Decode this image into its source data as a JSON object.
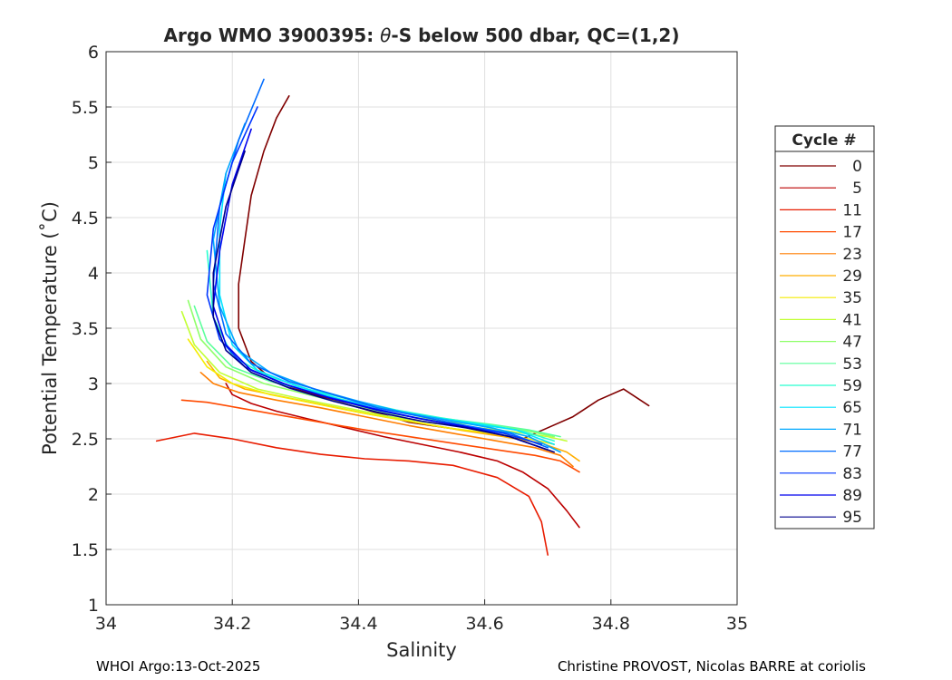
{
  "chart_data": {
    "type": "line",
    "title": {
      "prefix": "Argo WMO 3900395: ",
      "symbol": "θ",
      "suffix": "-S below 500 dbar,  QC=(1,2)"
    },
    "xlabel": "Salinity",
    "ylabel": "Potential Temperature (˚C)",
    "xlim": [
      34,
      35
    ],
    "ylim": [
      1,
      6
    ],
    "xticks": [
      {
        "value": 34,
        "label": "34"
      },
      {
        "value": 34.2,
        "label": "34.2"
      },
      {
        "value": 34.4,
        "label": "34.4"
      },
      {
        "value": 34.6,
        "label": "34.6"
      },
      {
        "value": 34.8,
        "label": "34.8"
      },
      {
        "value": 35,
        "label": "35"
      }
    ],
    "yticks": [
      {
        "value": 1,
        "label": "1"
      },
      {
        "value": 1.5,
        "label": "1.5"
      },
      {
        "value": 2,
        "label": "2"
      },
      {
        "value": 2.5,
        "label": "2.5"
      },
      {
        "value": 3,
        "label": "3"
      },
      {
        "value": 3.5,
        "label": "3.5"
      },
      {
        "value": 4,
        "label": "4"
      },
      {
        "value": 4.5,
        "label": "4.5"
      },
      {
        "value": 5,
        "label": "5"
      },
      {
        "value": 5.5,
        "label": "5.5"
      },
      {
        "value": 6,
        "label": "6"
      }
    ],
    "grid": true,
    "legend": {
      "title": "Cycle #",
      "placement": "outside-right",
      "entries": [
        {
          "label": "0",
          "color": "#800000"
        },
        {
          "label": "5",
          "color": "#bb0000"
        },
        {
          "label": "11",
          "color": "#e81c00"
        },
        {
          "label": "17",
          "color": "#ff4a00"
        },
        {
          "label": "23",
          "color": "#ff7d00"
        },
        {
          "label": "29",
          "color": "#ffae00"
        },
        {
          "label": "35",
          "color": "#f4ec00"
        },
        {
          "label": "41",
          "color": "#c2ff36"
        },
        {
          "label": "47",
          "color": "#8fff6a"
        },
        {
          "label": "53",
          "color": "#5cff9b"
        },
        {
          "label": "59",
          "color": "#28ffcf"
        },
        {
          "label": "65",
          "color": "#00e4ff"
        },
        {
          "label": "71",
          "color": "#00a8ff"
        },
        {
          "label": "77",
          "color": "#006cff"
        },
        {
          "label": "83",
          "color": "#0036ff"
        },
        {
          "label": "89",
          "color": "#0000ed"
        },
        {
          "label": "95",
          "color": "#00008b"
        }
      ]
    },
    "series": [
      {
        "name": "0",
        "color": "#800000",
        "x": [
          34.29,
          34.27,
          34.25,
          34.23,
          34.22,
          34.21,
          34.21,
          34.23,
          34.26,
          34.3,
          34.36,
          34.42,
          34.48,
          34.54,
          34.6,
          34.66,
          34.7,
          34.74,
          34.78,
          34.82,
          34.86
        ],
        "y": [
          5.6,
          5.4,
          5.1,
          4.7,
          4.3,
          3.9,
          3.5,
          3.2,
          3.05,
          2.95,
          2.85,
          2.75,
          2.65,
          2.6,
          2.55,
          2.5,
          2.6,
          2.7,
          2.85,
          2.95,
          2.8
        ]
      },
      {
        "name": "5",
        "color": "#bb0000",
        "x": [
          34.19,
          34.2,
          34.23,
          34.27,
          34.32,
          34.38,
          34.44,
          34.5,
          34.56,
          34.62,
          34.66,
          34.7,
          34.73,
          34.75
        ],
        "y": [
          3.0,
          2.9,
          2.82,
          2.75,
          2.68,
          2.6,
          2.52,
          2.45,
          2.38,
          2.3,
          2.2,
          2.05,
          1.85,
          1.7
        ]
      },
      {
        "name": "11",
        "color": "#e81c00",
        "x": [
          34.08,
          34.14,
          34.2,
          34.27,
          34.34,
          34.41,
          34.48,
          34.55,
          34.62,
          34.67,
          34.69,
          34.7
        ],
        "y": [
          2.48,
          2.55,
          2.5,
          2.42,
          2.36,
          2.32,
          2.3,
          2.26,
          2.15,
          1.98,
          1.75,
          1.45
        ]
      },
      {
        "name": "17",
        "color": "#ff4a00",
        "x": [
          34.12,
          34.16,
          34.21,
          34.27,
          34.34,
          34.41,
          34.48,
          34.55,
          34.62,
          34.68,
          34.72,
          34.75
        ],
        "y": [
          2.85,
          2.83,
          2.78,
          2.72,
          2.65,
          2.58,
          2.52,
          2.46,
          2.4,
          2.35,
          2.3,
          2.2
        ]
      },
      {
        "name": "23",
        "color": "#ff7d00",
        "x": [
          34.15,
          34.17,
          34.21,
          34.27,
          34.34,
          34.41,
          34.48,
          34.55,
          34.62,
          34.68,
          34.72,
          34.74
        ],
        "y": [
          3.1,
          3.0,
          2.92,
          2.85,
          2.78,
          2.7,
          2.62,
          2.55,
          2.48,
          2.42,
          2.35,
          2.25
        ]
      },
      {
        "name": "29",
        "color": "#ffae00",
        "x": [
          34.16,
          34.18,
          34.22,
          34.28,
          34.35,
          34.42,
          34.49,
          34.56,
          34.63,
          34.69,
          34.73,
          34.75
        ],
        "y": [
          3.2,
          3.05,
          2.95,
          2.88,
          2.8,
          2.72,
          2.65,
          2.58,
          2.52,
          2.46,
          2.38,
          2.3
        ]
      },
      {
        "name": "35",
        "color": "#f4ec00",
        "x": [
          34.13,
          34.16,
          34.2,
          34.26,
          34.33,
          34.4,
          34.47,
          34.54,
          34.61,
          34.67,
          34.71
        ],
        "y": [
          3.4,
          3.15,
          3.0,
          2.9,
          2.82,
          2.74,
          2.67,
          2.6,
          2.55,
          2.5,
          2.45
        ]
      },
      {
        "name": "41",
        "color": "#c2ff36",
        "x": [
          34.12,
          34.14,
          34.18,
          34.24,
          34.31,
          34.38,
          34.45,
          34.52,
          34.59,
          34.65,
          34.7,
          34.73
        ],
        "y": [
          3.65,
          3.35,
          3.1,
          2.95,
          2.86,
          2.78,
          2.7,
          2.64,
          2.6,
          2.56,
          2.52,
          2.48
        ]
      },
      {
        "name": "47",
        "color": "#8fff6a",
        "x": [
          34.13,
          34.15,
          34.19,
          34.25,
          34.32,
          34.39,
          34.46,
          34.53,
          34.6,
          34.66,
          34.71
        ],
        "y": [
          3.75,
          3.4,
          3.15,
          3.0,
          2.9,
          2.8,
          2.72,
          2.66,
          2.62,
          2.58,
          2.52
        ]
      },
      {
        "name": "53",
        "color": "#5cff9b",
        "x": [
          34.14,
          34.16,
          34.2,
          34.26,
          34.33,
          34.4,
          34.47,
          34.54,
          34.61,
          34.67,
          34.72
        ],
        "y": [
          3.7,
          3.38,
          3.15,
          3.02,
          2.92,
          2.82,
          2.74,
          2.68,
          2.63,
          2.58,
          2.52
        ]
      },
      {
        "name": "59",
        "color": "#28ffcf",
        "x": [
          34.16,
          34.17,
          34.2,
          34.25,
          34.32,
          34.39,
          34.46,
          34.53,
          34.6,
          34.66,
          34.71
        ],
        "y": [
          4.2,
          3.6,
          3.25,
          3.08,
          2.95,
          2.85,
          2.76,
          2.69,
          2.63,
          2.57,
          2.48
        ]
      },
      {
        "name": "65",
        "color": "#00e4ff",
        "x": [
          34.19,
          34.18,
          34.18,
          34.2,
          34.24,
          34.3,
          34.37,
          34.44,
          34.51,
          34.58,
          34.65,
          34.71
        ],
        "y": [
          4.9,
          4.4,
          3.8,
          3.35,
          3.12,
          2.98,
          2.86,
          2.77,
          2.7,
          2.64,
          2.58,
          2.45
        ]
      },
      {
        "name": "71",
        "color": "#00a8ff",
        "x": [
          34.22,
          34.19,
          34.17,
          34.18,
          34.21,
          34.26,
          34.33,
          34.4,
          34.47,
          34.54,
          34.61,
          34.67,
          34.72
        ],
        "y": [
          5.35,
          4.9,
          4.3,
          3.7,
          3.3,
          3.1,
          2.95,
          2.84,
          2.74,
          2.67,
          2.6,
          2.52,
          2.38
        ]
      },
      {
        "name": "77",
        "color": "#006cff",
        "x": [
          34.25,
          34.21,
          34.18,
          34.17,
          34.19,
          34.23,
          34.29,
          34.36,
          34.43,
          34.5,
          34.57,
          34.64,
          34.7
        ],
        "y": [
          5.75,
          5.2,
          4.6,
          3.9,
          3.45,
          3.18,
          3.02,
          2.9,
          2.78,
          2.7,
          2.62,
          2.55,
          2.42
        ]
      },
      {
        "name": "83",
        "color": "#0036ff",
        "x": [
          34.24,
          34.2,
          34.17,
          34.16,
          34.18,
          34.22,
          34.28,
          34.35,
          34.42,
          34.49,
          34.56,
          34.63,
          34.69
        ],
        "y": [
          5.5,
          5.0,
          4.4,
          3.8,
          3.4,
          3.15,
          3.0,
          2.88,
          2.78,
          2.69,
          2.62,
          2.55,
          2.45
        ]
      },
      {
        "name": "89",
        "color": "#0000ed",
        "x": [
          34.23,
          34.2,
          34.18,
          34.17,
          34.19,
          34.23,
          34.29,
          34.36,
          34.43,
          34.5,
          34.57,
          34.64,
          34.7
        ],
        "y": [
          5.3,
          4.8,
          4.2,
          3.7,
          3.35,
          3.12,
          2.98,
          2.86,
          2.76,
          2.68,
          2.61,
          2.52,
          2.4
        ]
      },
      {
        "name": "95",
        "color": "#00008b",
        "x": [
          34.22,
          34.19,
          34.17,
          34.17,
          34.19,
          34.23,
          34.29,
          34.36,
          34.43,
          34.5,
          34.57,
          34.64,
          34.71
        ],
        "y": [
          5.1,
          4.6,
          4.0,
          3.6,
          3.3,
          3.1,
          2.96,
          2.84,
          2.74,
          2.66,
          2.6,
          2.52,
          2.38
        ]
      }
    ]
  },
  "footer": {
    "left": "WHOI Argo:13-Oct-2025",
    "right": "Christine PROVOST, Nicolas BARRE at coriolis"
  }
}
